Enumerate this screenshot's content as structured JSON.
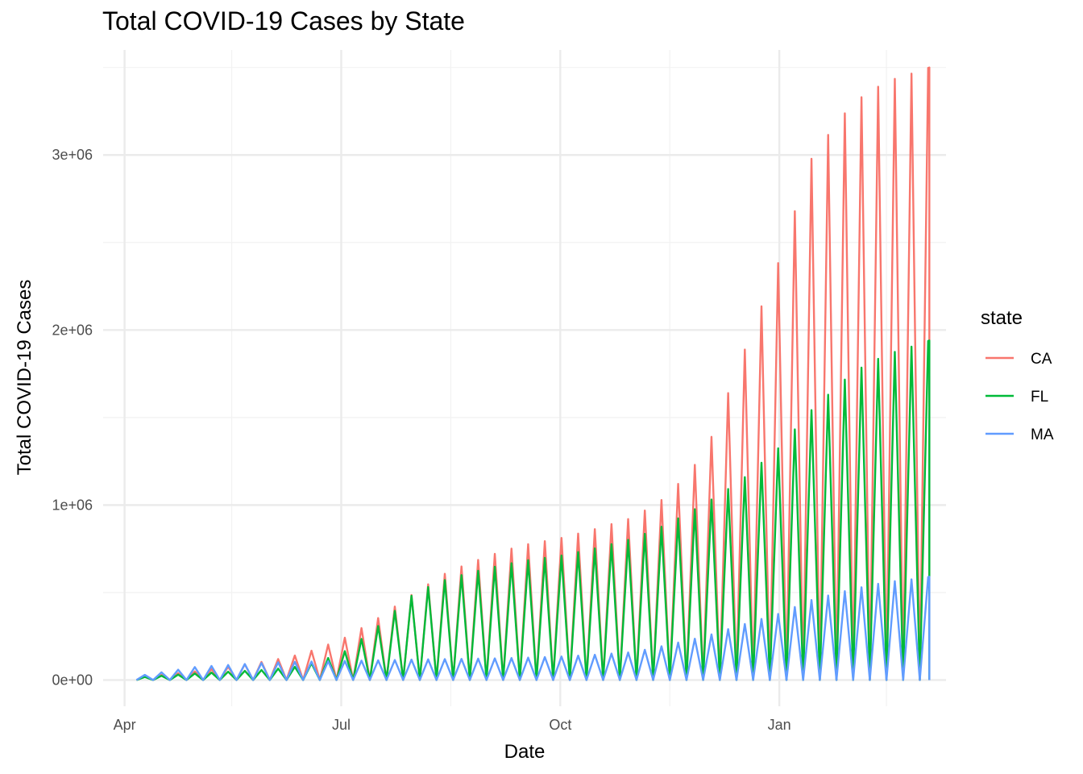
{
  "chart_data": {
    "type": "line",
    "title": "Total COVID-19 Cases by State",
    "xlabel": "Date",
    "ylabel": "Total COVID-19 Cases",
    "x_ticks": [
      {
        "date": "2020-04-01",
        "label": "Apr"
      },
      {
        "date": "2020-07-01",
        "label": "Jul"
      },
      {
        "date": "2020-10-01",
        "label": "Oct"
      },
      {
        "date": "2021-01-01",
        "label": "Jan"
      }
    ],
    "x_minor_ticks": [
      "2020-05-16",
      "2020-08-16",
      "2020-11-16",
      "2021-02-15"
    ],
    "xlim": [
      "2020-03-23",
      "2021-03-12"
    ],
    "y_ticks": [
      {
        "value": 0,
        "label": "0e+00"
      },
      {
        "value": 1000000,
        "label": "1e+06"
      },
      {
        "value": 2000000,
        "label": "2e+06"
      },
      {
        "value": 3000000,
        "label": "3e+06"
      }
    ],
    "y_minor_ticks": [
      500000,
      1500000,
      2500000,
      3500000
    ],
    "ylim": [
      -150000,
      3600000
    ],
    "grid": true,
    "legend": {
      "title": "state",
      "position": "right"
    },
    "note": "Each series zig-zags between 0 and the cumulative total on successive dates; values below are the peak cumulative totals.",
    "series": [
      {
        "name": "CA",
        "color": "#F8766D",
        "x": [
          "2020-04-06",
          "2020-05-01",
          "2020-06-01",
          "2020-06-15",
          "2020-07-01",
          "2020-07-15",
          "2020-08-01",
          "2020-08-15",
          "2020-09-01",
          "2020-09-15",
          "2020-10-01",
          "2020-10-15",
          "2020-11-01",
          "2020-11-15",
          "2020-12-01",
          "2020-12-15",
          "2021-01-01",
          "2021-01-15",
          "2021-02-01",
          "2021-02-15",
          "2021-03-01",
          "2021-03-05"
        ],
        "values": [
          15000,
          50000,
          110000,
          150000,
          230000,
          340000,
          500000,
          620000,
          710000,
          770000,
          810000,
          860000,
          930000,
          1050000,
          1300000,
          1800000,
          2400000,
          3000000,
          3300000,
          3420000,
          3480000,
          3500000
        ]
      },
      {
        "name": "FL",
        "color": "#00BA38",
        "x": [
          "2020-04-06",
          "2020-05-01",
          "2020-06-01",
          "2020-06-15",
          "2020-07-01",
          "2020-07-15",
          "2020-08-01",
          "2020-08-15",
          "2020-09-01",
          "2020-09-15",
          "2020-10-01",
          "2020-10-15",
          "2020-11-01",
          "2020-11-15",
          "2020-12-01",
          "2020-12-15",
          "2021-01-01",
          "2021-01-15",
          "2021-02-01",
          "2021-02-15",
          "2021-03-01",
          "2021-03-05"
        ],
        "values": [
          14000,
          38000,
          60000,
          80000,
          150000,
          290000,
          500000,
          580000,
          640000,
          680000,
          710000,
          750000,
          810000,
          890000,
          1010000,
          1130000,
          1330000,
          1550000,
          1760000,
          1860000,
          1920000,
          1940000
        ]
      },
      {
        "name": "MA",
        "color": "#619CFF",
        "x": [
          "2020-04-06",
          "2020-05-01",
          "2020-06-01",
          "2020-06-15",
          "2020-07-01",
          "2020-07-15",
          "2020-08-01",
          "2020-08-15",
          "2020-09-01",
          "2020-09-15",
          "2020-10-01",
          "2020-10-15",
          "2020-11-01",
          "2020-11-15",
          "2020-12-01",
          "2020-12-15",
          "2021-01-01",
          "2021-01-15",
          "2021-02-01",
          "2021-02-15",
          "2021-03-01",
          "2021-03-05"
        ],
        "values": [
          22000,
          75000,
          100000,
          105000,
          109000,
          112000,
          117000,
          120000,
          123000,
          127000,
          134000,
          144000,
          160000,
          200000,
          250000,
          310000,
          380000,
          460000,
          520000,
          560000,
          580000,
          590000
        ]
      }
    ]
  }
}
